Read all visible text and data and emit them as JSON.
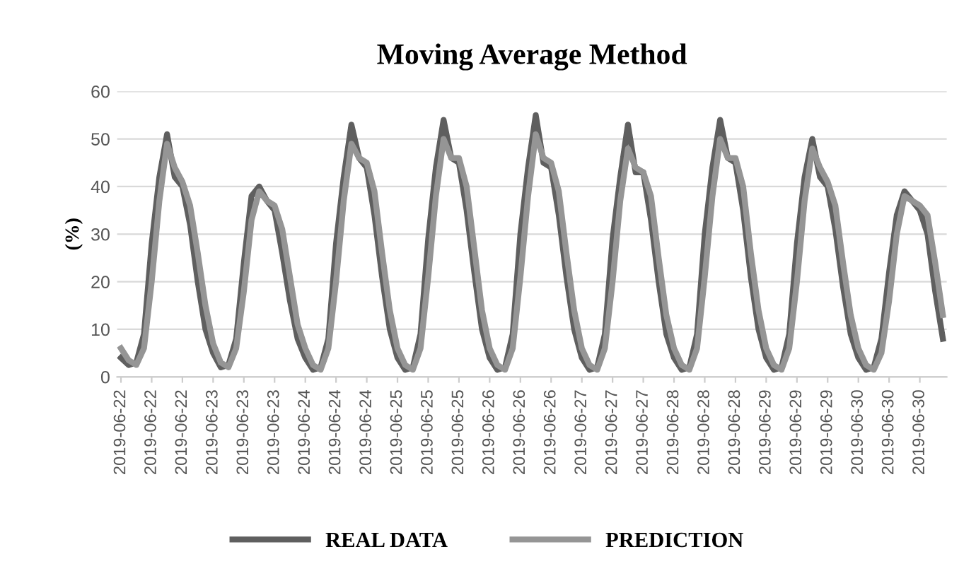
{
  "chart_data": {
    "type": "line",
    "title": "Moving Average Method",
    "ylabel": "(%)",
    "categories": [
      "2019-06-22",
      null,
      null,
      null,
      "2019-06-22",
      null,
      null,
      null,
      "2019-06-22",
      null,
      null,
      null,
      "2019-06-23",
      null,
      null,
      null,
      "2019-06-23",
      null,
      null,
      null,
      "2019-06-23",
      null,
      null,
      null,
      "2019-06-24",
      null,
      null,
      null,
      "2019-06-24",
      null,
      null,
      null,
      "2019-06-24",
      null,
      null,
      null,
      "2019-06-25",
      null,
      null,
      null,
      "2019-06-25",
      null,
      null,
      null,
      "2019-06-25",
      null,
      null,
      null,
      "2019-06-26",
      null,
      null,
      null,
      "2019-06-26",
      null,
      null,
      null,
      "2019-06-26",
      null,
      null,
      null,
      "2019-06-27",
      null,
      null,
      null,
      "2019-06-27",
      null,
      null,
      null,
      "2019-06-27",
      null,
      null,
      null,
      "2019-06-28",
      null,
      null,
      null,
      "2019-06-28",
      null,
      null,
      null,
      "2019-06-28",
      null,
      null,
      null,
      "2019-06-29",
      null,
      null,
      null,
      "2019-06-29",
      null,
      null,
      null,
      "2019-06-29",
      null,
      null,
      null,
      "2019-06-30",
      null,
      null,
      null,
      "2019-06-30",
      null,
      null,
      null,
      "2019-06-30",
      null,
      null,
      null
    ],
    "series": [
      {
        "name": "REAL DATA",
        "color": "#5f5f5f",
        "values": [
          4,
          2.5,
          3,
          9,
          28,
          42,
          51,
          42,
          40,
          32,
          20,
          10,
          5,
          2,
          2.5,
          8,
          24,
          38,
          40,
          37,
          35,
          26,
          16,
          8,
          4,
          1.5,
          2,
          8,
          28,
          42,
          53,
          46,
          44,
          34,
          21,
          10,
          4,
          1.5,
          2,
          9,
          29,
          44,
          54,
          46,
          45,
          35,
          22,
          10,
          4,
          1.5,
          2,
          9,
          30,
          44,
          55,
          45,
          44,
          34,
          21,
          10,
          4,
          1.5,
          2,
          9,
          29,
          42,
          53,
          43,
          43,
          33,
          20,
          9,
          4,
          1.5,
          2,
          9,
          30,
          44,
          54,
          46,
          45,
          35,
          21,
          10,
          4,
          1.5,
          2,
          9,
          28,
          42,
          50,
          42,
          40,
          31,
          19,
          9,
          4,
          1.5,
          2,
          8,
          22,
          34,
          39,
          37,
          35,
          30,
          18,
          8
        ]
      },
      {
        "name": "PREDICTION",
        "color": "#959595",
        "values": [
          6,
          3.5,
          2.5,
          6,
          20,
          37,
          49,
          44,
          41,
          36,
          26,
          15,
          7,
          3,
          2,
          6,
          18,
          33,
          39,
          37,
          36,
          31,
          21,
          11,
          6,
          2.5,
          1.5,
          6,
          20,
          37,
          49,
          46,
          45,
          39,
          26,
          14,
          6,
          2.5,
          1.5,
          6,
          21,
          38,
          50,
          46,
          46,
          40,
          27,
          14,
          6,
          2.5,
          1.5,
          6,
          21,
          38,
          51,
          46,
          45,
          39,
          26,
          14,
          6,
          2.5,
          1.5,
          6,
          20,
          37,
          48,
          44,
          43,
          38,
          25,
          13,
          6,
          2.5,
          1.5,
          6,
          21,
          38,
          50,
          46,
          46,
          40,
          26,
          14,
          6,
          2.5,
          1.5,
          6,
          20,
          37,
          48,
          44,
          41,
          36,
          24,
          13,
          6,
          2.5,
          1.5,
          5,
          16,
          30,
          38,
          37,
          36,
          34,
          24,
          13
        ]
      }
    ],
    "ylim": [
      0,
      60
    ],
    "yticks": [
      0,
      10,
      20,
      30,
      40,
      50,
      60
    ],
    "grid": "y",
    "legend": "bottom",
    "marker": "none",
    "line_style": "solid"
  }
}
